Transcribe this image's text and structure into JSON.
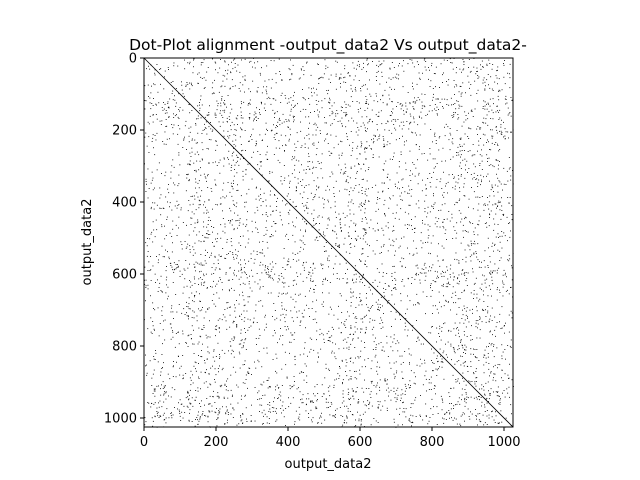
{
  "chart_data": {
    "type": "scatter",
    "title": "Dot-Plot alignment -output_data2 Vs output_data2-",
    "xlabel": "output_data2",
    "ylabel": "output_data2",
    "xlim": [
      0,
      1025
    ],
    "ylim": [
      1025,
      0
    ],
    "y_axis_inverted": true,
    "x_ticks": [
      "0",
      "200",
      "400",
      "600",
      "800",
      "1000"
    ],
    "y_ticks": [
      "0",
      "200",
      "400",
      "600",
      "800",
      "1000"
    ],
    "grid": false,
    "legend": "none",
    "point_color": "#000000",
    "background_color": "#ffffff",
    "series": [
      {
        "description_of_pattern": "main diagonal",
        "points": [
          [
            0,
            0
          ],
          [
            1025,
            1025
          ]
        ]
      }
    ],
    "dot_density": "dense random matches throughout, denser bands near x≈130-180, 540-620, 860-1000 and y≈120-180, 900-1000"
  }
}
